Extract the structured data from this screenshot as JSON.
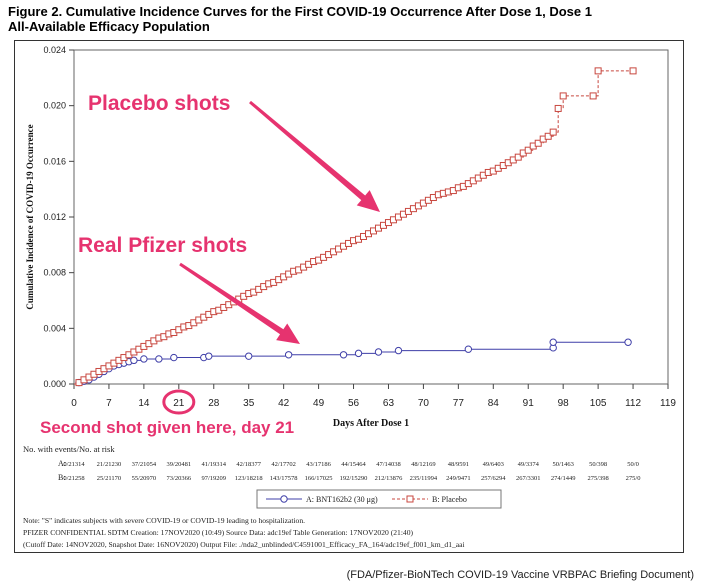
{
  "title_line1": "Figure 2. Cumulative Incidence Curves for the First COVID-19 Occurrence After Dose 1, Dose 1",
  "title_line2": "All-Available Efficacy Population",
  "credit": "(FDA/Pfizer-BioNTech COVID-19 Vaccine VRBPAC Briefing Document)",
  "annotations": {
    "placebo": "Placebo shots",
    "pfizer": "Real Pfizer shots",
    "second_shot": "Second shot given here, day 21"
  },
  "colors": {
    "placebo": "#c8473f",
    "vaccine": "#3f3fa8",
    "annotation_text": "#e6336f",
    "annotation_arrow": "#e6336f"
  },
  "at_risk": {
    "header": "No. with events/No. at risk",
    "rows": [
      {
        "label": "A:",
        "values": [
          "0/21314",
          "21/21230",
          "37/21054",
          "39/20481",
          "41/19314",
          "42/18377",
          "42/17702",
          "43/17186",
          "44/15464",
          "47/14038",
          "48/12169",
          "48/9591",
          "49/6403",
          "49/3374",
          "50/1463",
          "50/398",
          "50/0"
        ]
      },
      {
        "label": "B:",
        "values": [
          "0/21258",
          "25/21170",
          "55/20970",
          "73/20366",
          "97/19209",
          "123/18218",
          "143/17578",
          "166/17025",
          "192/15290",
          "212/13876",
          "235/11994",
          "249/9471",
          "257/6294",
          "267/3301",
          "274/1449",
          "275/398",
          "275/0"
        ]
      }
    ]
  },
  "legend": {
    "a": "A: BNT162b2 (30 μg)",
    "b": "B: Placebo"
  },
  "notes": [
    "Note: \"S\" indicates subjects with severe COVID-19 or COVID-19 leading to hospitalization.",
    "PFIZER CONFIDENTIAL  SDTM Creation: 17NOV2020 (10:49)  Source Data: adc19ef  Table Generation: 17NOV2020 (21:40)",
    "(Cutoff Date: 14NOV2020, Snapshot Date: 16NOV2020) Output File: ./nda2_unblinded/C4591001_Efficacy_FA_164/adc19ef_f001_km_d1_aai"
  ],
  "chart_data": {
    "type": "line",
    "xlabel": "Days After Dose 1",
    "ylabel": "Cumulative Incidence of COVID-19 Occurrence",
    "xlim": [
      0,
      119
    ],
    "ylim": [
      0,
      0.024
    ],
    "xticks": [
      0,
      7,
      14,
      21,
      28,
      35,
      42,
      49,
      56,
      63,
      70,
      77,
      84,
      91,
      98,
      105,
      112,
      119
    ],
    "yticks": [
      0.0,
      0.004,
      0.008,
      0.012,
      0.016,
      0.02,
      0.024
    ],
    "ytick_labels": [
      "0.000",
      "0.004",
      "0.008",
      "0.012",
      "0.016",
      "0.020",
      "0.024"
    ],
    "highlight_x": 21,
    "series": [
      {
        "name": "A: BNT162b2 (30 μg)",
        "marker": "circle",
        "points": [
          [
            0,
            0
          ],
          [
            1,
            0.0001
          ],
          [
            2,
            0.0002
          ],
          [
            3,
            0.0003
          ],
          [
            4,
            0.0005
          ],
          [
            5,
            0.0007
          ],
          [
            6,
            0.0009
          ],
          [
            7,
            0.0011
          ],
          [
            8,
            0.0013
          ],
          [
            9,
            0.0014
          ],
          [
            10,
            0.0015
          ],
          [
            11,
            0.0016
          ],
          [
            12,
            0.0017
          ],
          [
            14,
            0.0018
          ],
          [
            17,
            0.0018
          ],
          [
            20,
            0.0019
          ],
          [
            26,
            0.0019
          ],
          [
            27,
            0.002
          ],
          [
            35,
            0.002
          ],
          [
            43,
            0.0021
          ],
          [
            54,
            0.0021
          ],
          [
            57,
            0.0022
          ],
          [
            61,
            0.0023
          ],
          [
            65,
            0.0024
          ],
          [
            79,
            0.0025
          ],
          [
            96,
            0.0026
          ],
          [
            96,
            0.003
          ],
          [
            111,
            0.003
          ]
        ]
      },
      {
        "name": "B: Placebo",
        "marker": "square",
        "points": [
          [
            0,
            0
          ],
          [
            1,
            0.0001
          ],
          [
            2,
            0.0003
          ],
          [
            3,
            0.0005
          ],
          [
            4,
            0.0007
          ],
          [
            5,
            0.0009
          ],
          [
            6,
            0.0011
          ],
          [
            7,
            0.0013
          ],
          [
            8,
            0.0015
          ],
          [
            9,
            0.0017
          ],
          [
            10,
            0.0019
          ],
          [
            11,
            0.0021
          ],
          [
            12,
            0.0023
          ],
          [
            13,
            0.0025
          ],
          [
            14,
            0.0027
          ],
          [
            15,
            0.0029
          ],
          [
            16,
            0.0031
          ],
          [
            17,
            0.0033
          ],
          [
            18,
            0.0034
          ],
          [
            19,
            0.0036
          ],
          [
            20,
            0.0037
          ],
          [
            21,
            0.0039
          ],
          [
            22,
            0.0041
          ],
          [
            23,
            0.0042
          ],
          [
            24,
            0.0044
          ],
          [
            25,
            0.0046
          ],
          [
            26,
            0.0048
          ],
          [
            27,
            0.005
          ],
          [
            28,
            0.0052
          ],
          [
            29,
            0.0053
          ],
          [
            30,
            0.0055
          ],
          [
            31,
            0.0057
          ],
          [
            32,
            0.0059
          ],
          [
            33,
            0.0061
          ],
          [
            34,
            0.0063
          ],
          [
            35,
            0.0065
          ],
          [
            36,
            0.0066
          ],
          [
            37,
            0.0068
          ],
          [
            38,
            0.007
          ],
          [
            39,
            0.0072
          ],
          [
            40,
            0.0073
          ],
          [
            41,
            0.0075
          ],
          [
            42,
            0.0077
          ],
          [
            43,
            0.0079
          ],
          [
            44,
            0.0081
          ],
          [
            45,
            0.0082
          ],
          [
            46,
            0.0084
          ],
          [
            47,
            0.0086
          ],
          [
            48,
            0.0088
          ],
          [
            49,
            0.0089
          ],
          [
            50,
            0.0091
          ],
          [
            51,
            0.0093
          ],
          [
            52,
            0.0095
          ],
          [
            53,
            0.0097
          ],
          [
            54,
            0.0099
          ],
          [
            55,
            0.0101
          ],
          [
            56,
            0.0103
          ],
          [
            57,
            0.0104
          ],
          [
            58,
            0.0106
          ],
          [
            59,
            0.0108
          ],
          [
            60,
            0.011
          ],
          [
            61,
            0.0112
          ],
          [
            62,
            0.0114
          ],
          [
            63,
            0.0116
          ],
          [
            64,
            0.0118
          ],
          [
            65,
            0.012
          ],
          [
            66,
            0.0122
          ],
          [
            67,
            0.0124
          ],
          [
            68,
            0.0126
          ],
          [
            69,
            0.0128
          ],
          [
            70,
            0.013
          ],
          [
            71,
            0.0132
          ],
          [
            72,
            0.0134
          ],
          [
            73,
            0.0136
          ],
          [
            74,
            0.0137
          ],
          [
            75,
            0.0138
          ],
          [
            76,
            0.0139
          ],
          [
            77,
            0.0141
          ],
          [
            78,
            0.0142
          ],
          [
            79,
            0.0144
          ],
          [
            80,
            0.0146
          ],
          [
            81,
            0.0148
          ],
          [
            82,
            0.015
          ],
          [
            83,
            0.0152
          ],
          [
            84,
            0.0153
          ],
          [
            85,
            0.0155
          ],
          [
            86,
            0.0157
          ],
          [
            87,
            0.0159
          ],
          [
            88,
            0.0161
          ],
          [
            89,
            0.0163
          ],
          [
            90,
            0.0166
          ],
          [
            91,
            0.0168
          ],
          [
            92,
            0.0171
          ],
          [
            93,
            0.0173
          ],
          [
            94,
            0.0176
          ],
          [
            95,
            0.0178
          ],
          [
            96,
            0.0181
          ],
          [
            97,
            0.0198
          ],
          [
            98,
            0.0207
          ],
          [
            104,
            0.0207
          ],
          [
            105,
            0.0225
          ],
          [
            112,
            0.0225
          ]
        ]
      }
    ]
  }
}
